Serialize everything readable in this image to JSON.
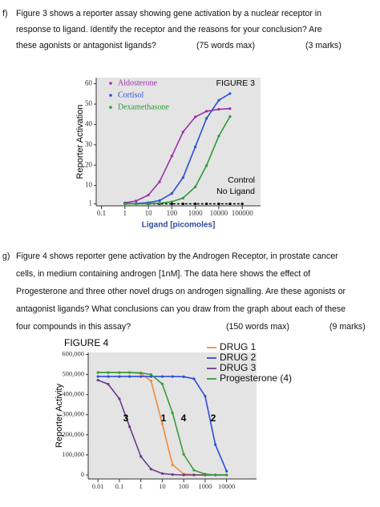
{
  "questions": [
    {
      "label": "f)",
      "lines": [
        "Figure 3 shows a reporter assay showing gene activation by a nuclear receptor in",
        "response to ligand. Identify the receptor and the reasons for your conclusion? Are",
        "these agonists or antagonist ligands?"
      ],
      "words": "(75 words max)",
      "marks": "(3 marks)"
    },
    {
      "label": "g)",
      "lines": [
        "Figure 4 shows reporter gene activation by the Androgen Receptor, in prostate cancer",
        "cells, in medium containing androgen [1nM]. The data here shows the effect of",
        "Progesterone and three other novel drugs on androgen signalling. Are these agonists or",
        "antagonist ligands? What conclusions can you draw from the graph about each of these",
        "four compounds in this assay?"
      ],
      "words": "(150 words max)",
      "marks": "(9 marks)"
    }
  ],
  "chart_data": [
    {
      "type": "line",
      "title": "FIGURE 3",
      "x_label": "Ligand [picomoles]",
      "y_label": "Reporter Activation",
      "x_log": true,
      "legend": "top-left",
      "xlim": [
        0.06,
        600000
      ],
      "xticks": [
        0.1,
        1,
        10,
        100,
        1000,
        10000,
        100000
      ],
      "ylim": [
        0,
        63
      ],
      "yticks": [
        1,
        10,
        20,
        30,
        40,
        50,
        60
      ],
      "series": [
        {
          "name": "Aldosterone",
          "color": "#9b2fa8",
          "x": [
            1,
            3,
            10,
            30,
            100,
            300,
            1000,
            3000,
            10000,
            30000
          ],
          "values": [
            1.5,
            2.4,
            5.3,
            11.8,
            24.5,
            36.3,
            43.7,
            46.5,
            47.5,
            47.8
          ]
        },
        {
          "name": "Cortisol",
          "color": "#2a4fd6",
          "x": [
            1,
            3,
            10,
            30,
            100,
            300,
            1000,
            3000,
            10000,
            30000
          ],
          "values": [
            1.1,
            1.2,
            1.6,
            2.6,
            6.1,
            13.9,
            29,
            43,
            51.9,
            55.2
          ]
        },
        {
          "name": "Dexamethasone",
          "color": "#2f9a3a",
          "x": [
            1,
            3,
            10,
            30,
            100,
            300,
            1000,
            3000,
            10000,
            30000
          ],
          "values": [
            1,
            1,
            1.1,
            1.3,
            2,
            3.8,
            9.3,
            19.8,
            34.3,
            43.9
          ]
        }
      ],
      "baseline": {
        "label": [
          "Control",
          "No Ligand"
        ],
        "color": "#000000",
        "x": [
          1,
          3,
          10,
          30,
          100,
          300,
          1000,
          3000,
          10000,
          30000,
          100000
        ],
        "values": [
          1,
          1,
          1,
          1,
          1,
          1,
          1,
          1,
          1,
          1,
          1
        ]
      }
    },
    {
      "type": "line",
      "title": "FIGURE 4",
      "y_label": "Reporter Activity",
      "x_log": true,
      "legend": "top-right",
      "xlim": [
        0.0035,
        250000
      ],
      "xticks": [
        0.01,
        0.1,
        1,
        10,
        100,
        1000,
        10000
      ],
      "ylim": [
        -20000,
        610000
      ],
      "yticks": [
        0,
        {
          "value": 100000,
          "label": "100,000"
        },
        {
          "value": 200000,
          "label": "200,000"
        },
        {
          "value": 300000,
          "label": "300,000"
        },
        {
          "value": 400000,
          "label": "400,000"
        },
        {
          "value": 500000,
          "label": "500,000"
        },
        {
          "value": 600000,
          "label": "600,000"
        }
      ],
      "series": [
        {
          "name": "DRUG 1",
          "color": "#f08a3c",
          "x": [
            0.01,
            0.03,
            0.1,
            0.3,
            1,
            3,
            10,
            30,
            100,
            300,
            1000,
            3000,
            10000
          ],
          "values": [
            510000,
            510000,
            510000,
            510000,
            505000,
            468000,
            255000,
            51000,
            5000,
            1000,
            0,
            0,
            0
          ]
        },
        {
          "name": "DRUG 2",
          "color": "#2a4fd6",
          "x": [
            0.01,
            0.03,
            0.1,
            0.3,
            1,
            3,
            10,
            30,
            100,
            300,
            1000,
            3000,
            10000
          ],
          "values": [
            490000,
            490000,
            490000,
            490000,
            490000,
            490000,
            490000,
            490000,
            489000,
            479000,
            392000,
            151000,
            19000
          ]
        },
        {
          "name": "DRUG 3",
          "color": "#6a3a8a",
          "x": [
            0.01,
            0.03,
            0.1,
            0.3,
            1,
            3,
            10,
            30,
            100,
            300,
            1000,
            3000,
            10000
          ],
          "values": [
            472000,
            452000,
            379000,
            240000,
            92000,
            29000,
            7000,
            2000,
            0,
            0,
            0,
            0,
            0
          ]
        },
        {
          "name": "Progesterone (4)",
          "color": "#3a9a3a",
          "x": [
            0.01,
            0.03,
            0.1,
            0.3,
            1,
            3,
            10,
            30,
            100,
            300,
            1000,
            3000,
            10000
          ],
          "values": [
            510000,
            510000,
            510000,
            510000,
            508000,
            500000,
            453000,
            309000,
            103000,
            24000,
            4000,
            0,
            0
          ]
        }
      ],
      "curve_labels": [
        "3",
        "1",
        "4",
        "2"
      ]
    }
  ]
}
